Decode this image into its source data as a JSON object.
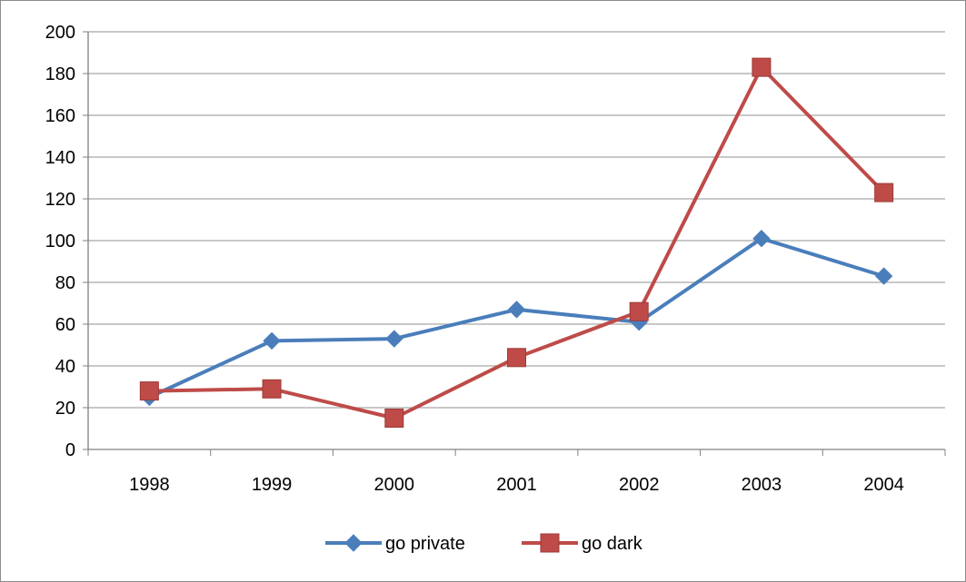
{
  "chart_data": {
    "type": "line",
    "categories": [
      "1998",
      "1999",
      "2000",
      "2001",
      "2002",
      "2003",
      "2004"
    ],
    "series": [
      {
        "name": "go private",
        "values": [
          25,
          52,
          53,
          67,
          61,
          101,
          83
        ],
        "color": "#4a7ebb",
        "marker": "diamond"
      },
      {
        "name": "go dark",
        "values": [
          28,
          29,
          15,
          44,
          66,
          183,
          123
        ],
        "color": "#be4b48",
        "marker": "square"
      }
    ],
    "ylim": [
      0,
      200
    ],
    "yticks": [
      "0",
      "20",
      "40",
      "60",
      "80",
      "100",
      "120",
      "140",
      "160",
      "180",
      "200"
    ],
    "grid": true,
    "legend": "bottom"
  }
}
